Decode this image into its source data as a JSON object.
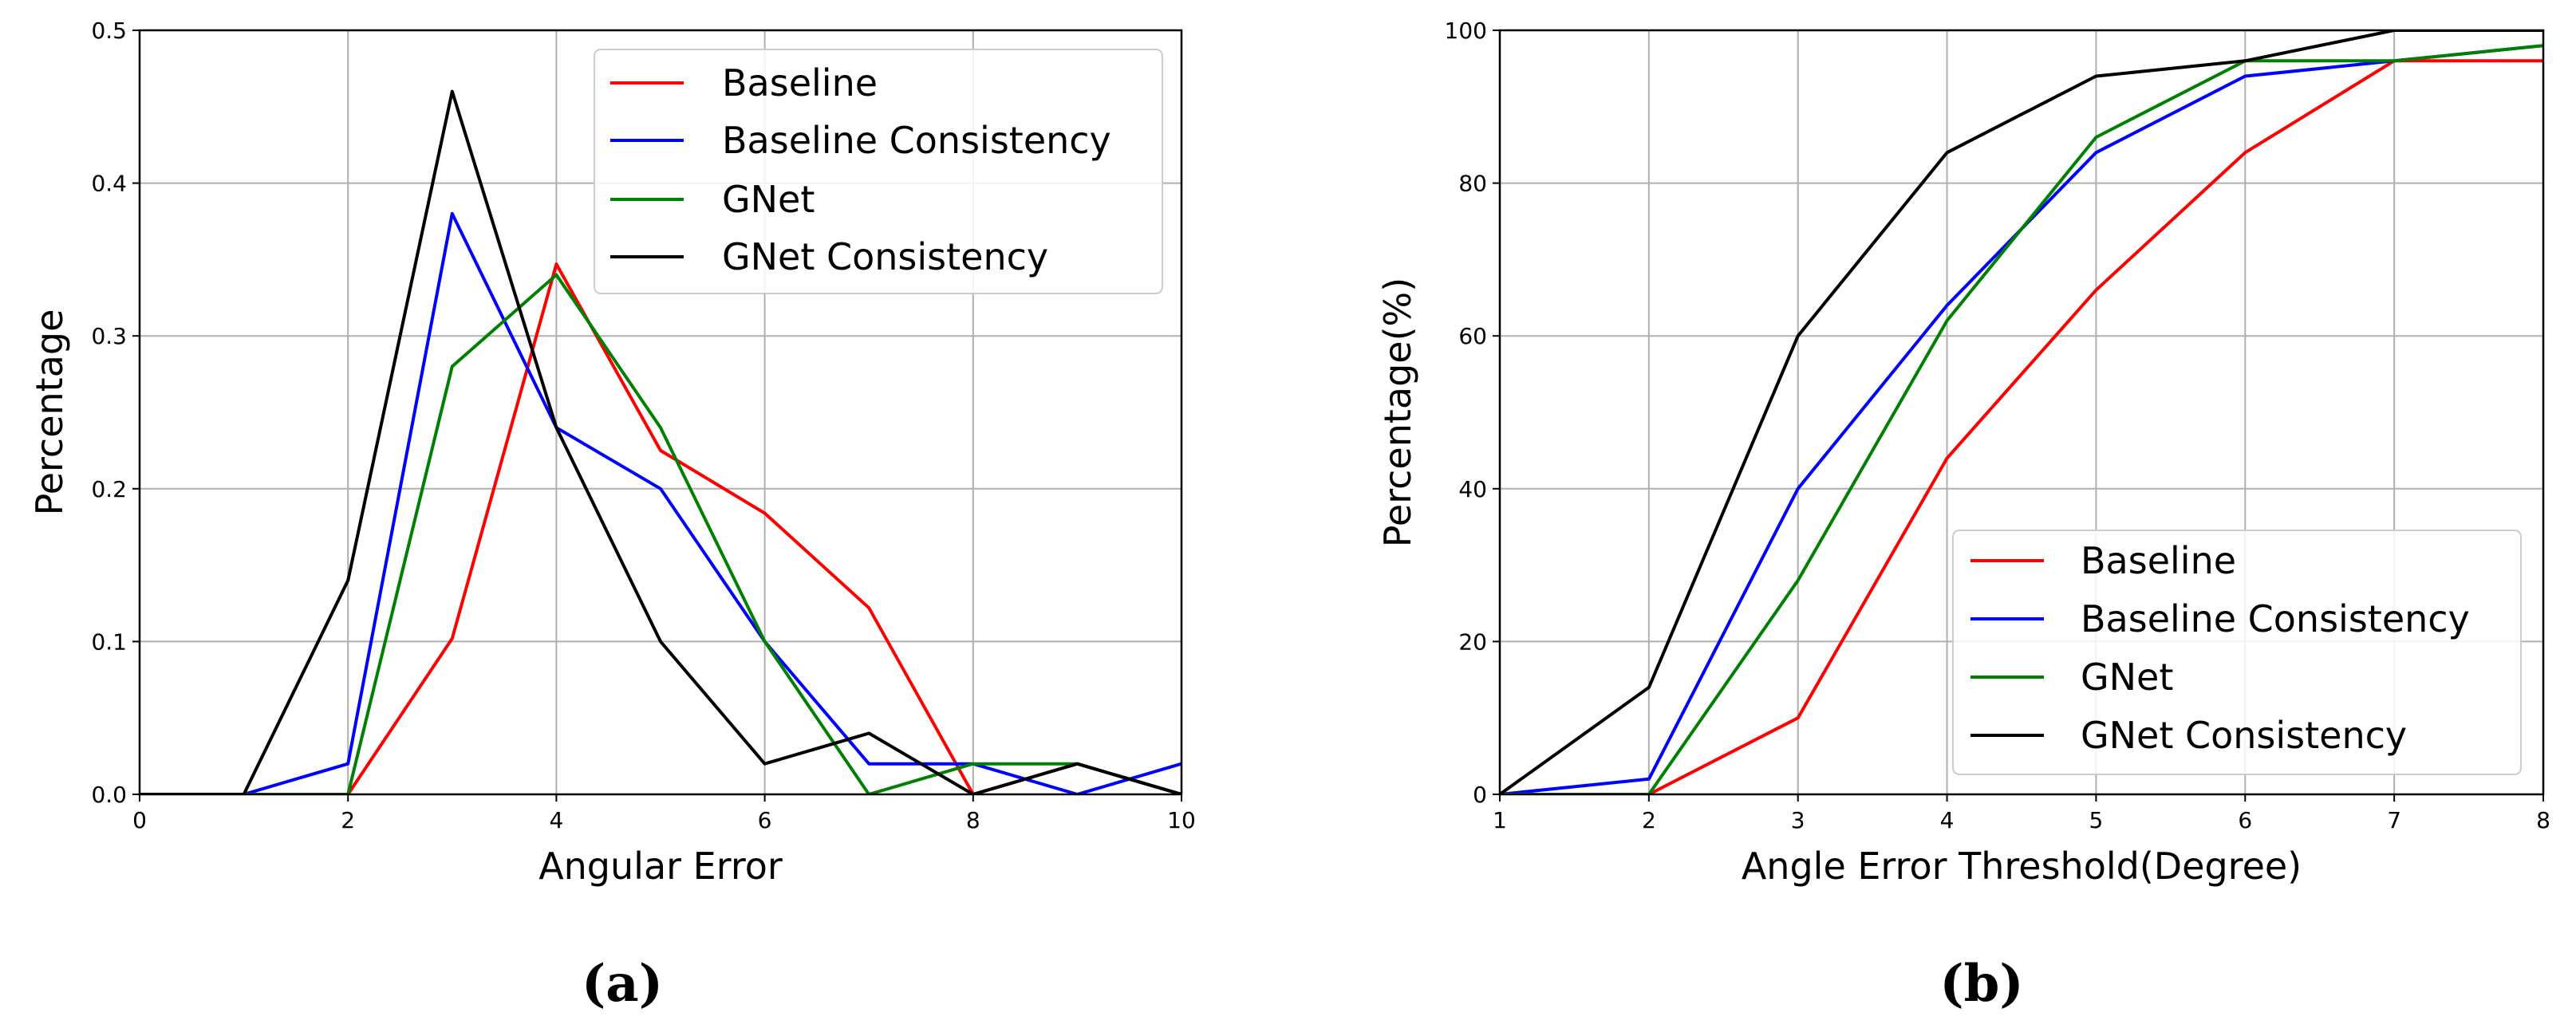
{
  "colors": {
    "baseline": "#ff0000",
    "baseline_consistency": "#0000ff",
    "gnet": "#008000",
    "gnet_consistency": "#000000",
    "grid": "#b0b0b0"
  },
  "chart_data": [
    {
      "type": "line",
      "caption": "(a)",
      "xlabel": "Angular Error",
      "ylabel": "Percentage",
      "xlim": [
        0,
        10
      ],
      "ylim": [
        0,
        0.5
      ],
      "xticks": [
        0,
        2,
        4,
        6,
        8,
        10
      ],
      "xtick_labels": [
        "0",
        "2",
        "4",
        "6",
        "8",
        "10"
      ],
      "yticks": [
        0.0,
        0.1,
        0.2,
        0.3,
        0.4,
        0.5
      ],
      "ytick_labels": [
        "0.0",
        "0.1",
        "0.2",
        "0.3",
        "0.4",
        "0.5"
      ],
      "grid": true,
      "legend_position": "top-right",
      "series": [
        {
          "name": "Baseline",
          "color_key": "baseline",
          "x": [
            0,
            1,
            2,
            3,
            4,
            5,
            6,
            7,
            8,
            9,
            10
          ],
          "values": [
            0,
            0,
            0,
            0.102,
            0.347,
            0.225,
            0.184,
            0.122,
            0,
            0.02,
            0
          ]
        },
        {
          "name": "Baseline Consistency",
          "color_key": "baseline_consistency",
          "x": [
            0,
            1,
            2,
            3,
            4,
            5,
            6,
            7,
            8,
            9,
            10
          ],
          "values": [
            0,
            0,
            0.02,
            0.38,
            0.24,
            0.2,
            0.1,
            0.02,
            0.02,
            0,
            0.02
          ]
        },
        {
          "name": "GNet",
          "color_key": "gnet",
          "x": [
            0,
            1,
            2,
            3,
            4,
            5,
            6,
            7,
            8,
            9,
            10
          ],
          "values": [
            0,
            0,
            0,
            0.28,
            0.34,
            0.24,
            0.1,
            0,
            0.02,
            0.02,
            0
          ]
        },
        {
          "name": "GNet Consistency",
          "color_key": "gnet_consistency",
          "x": [
            0,
            1,
            2,
            3,
            4,
            5,
            6,
            7,
            8,
            9,
            10
          ],
          "values": [
            0,
            0,
            0.14,
            0.46,
            0.24,
            0.1,
            0.02,
            0.04,
            0,
            0.02,
            0
          ]
        }
      ]
    },
    {
      "type": "line",
      "caption": "(b)",
      "xlabel": "Angle Error Threshold(Degree)",
      "ylabel": "Percentage(%)",
      "xlim": [
        1,
        8
      ],
      "ylim": [
        0,
        100
      ],
      "xticks": [
        1,
        2,
        3,
        4,
        5,
        6,
        7,
        8
      ],
      "xtick_labels": [
        "1",
        "2",
        "3",
        "4",
        "5",
        "6",
        "7",
        "8"
      ],
      "yticks": [
        0,
        20,
        40,
        60,
        80,
        100
      ],
      "ytick_labels": [
        "0",
        "20",
        "40",
        "60",
        "80",
        "100"
      ],
      "grid": true,
      "legend_position": "bottom-right",
      "series": [
        {
          "name": "Baseline",
          "color_key": "baseline",
          "x": [
            1,
            2,
            3,
            4,
            5,
            6,
            7,
            8
          ],
          "values": [
            0,
            0,
            10,
            44,
            66,
            84,
            96,
            96
          ]
        },
        {
          "name": "Baseline Consistency",
          "color_key": "baseline_consistency",
          "x": [
            1,
            2,
            3,
            4,
            5,
            6,
            7,
            8
          ],
          "values": [
            0,
            2,
            40,
            64,
            84,
            94,
            96,
            98
          ]
        },
        {
          "name": "GNet",
          "color_key": "gnet",
          "x": [
            1,
            2,
            3,
            4,
            5,
            6,
            7,
            8
          ],
          "values": [
            0,
            0,
            28,
            62,
            86,
            96,
            96,
            98
          ]
        },
        {
          "name": "GNet Consistency",
          "color_key": "gnet_consistency",
          "x": [
            1,
            2,
            3,
            4,
            5,
            6,
            7,
            8
          ],
          "values": [
            0,
            14,
            60,
            84,
            94,
            96,
            100,
            100
          ]
        }
      ]
    }
  ]
}
